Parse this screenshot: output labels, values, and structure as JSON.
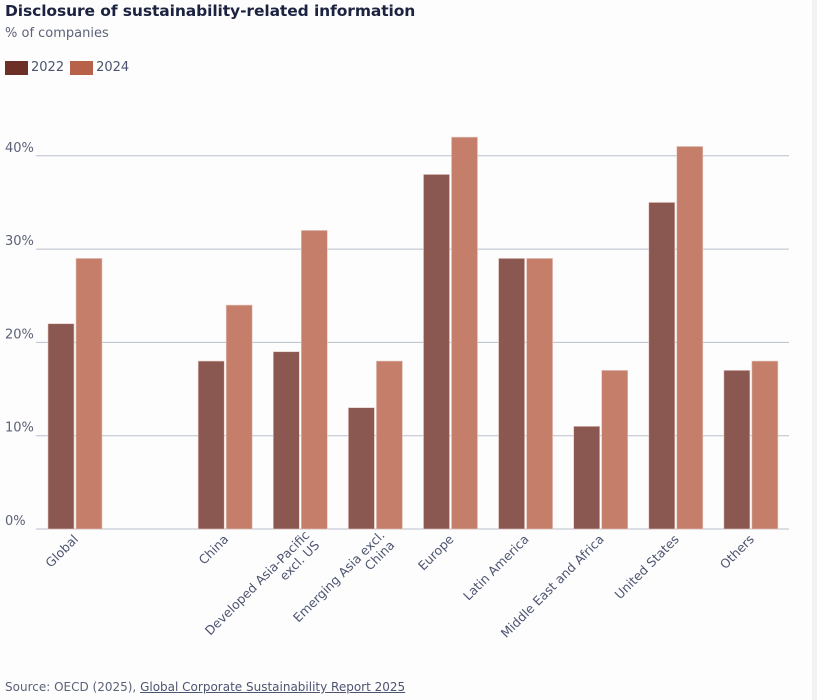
{
  "chart_data": {
    "type": "bar",
    "title": "Disclosure of sustainability-related information",
    "subtitle": "% of companies",
    "xlabel": "",
    "ylabel": "% of companies",
    "ylim": [
      0,
      40
    ],
    "yticks": [
      0,
      10,
      20,
      30,
      40
    ],
    "ytick_labels": [
      "0%",
      "10%",
      "20%",
      "30%",
      "40%"
    ],
    "grid": true,
    "legend_position": "top-left",
    "categories": [
      "Global",
      "",
      "China",
      "Developed Asia-Pacific excl. US",
      "Emerging Asia excl. China",
      "Europe",
      "Latin America",
      "Middle East and Africa",
      "United States",
      "Others"
    ],
    "category_labels": [
      [
        "Global"
      ],
      [],
      [
        "China"
      ],
      [
        "Developed Asia-Pacific",
        "excl. US"
      ],
      [
        "Emerging Asia excl.",
        "China"
      ],
      [
        "Europe"
      ],
      [
        "Latin America"
      ],
      [
        "Middle East and Africa"
      ],
      [
        "United States"
      ],
      [
        "Others"
      ]
    ],
    "series": [
      {
        "name": "2022",
        "color": "#6e2f28",
        "values": [
          22,
          null,
          18,
          19,
          13,
          38,
          29,
          11,
          35,
          17
        ]
      },
      {
        "name": "2024",
        "color": "#b8614a",
        "values": [
          29,
          null,
          24,
          32,
          18,
          42,
          29,
          17,
          41,
          18
        ]
      }
    ]
  },
  "source": {
    "prefix": "Source: OECD (2025), ",
    "link_text": "Global Corporate Sustainability Report 2025"
  }
}
